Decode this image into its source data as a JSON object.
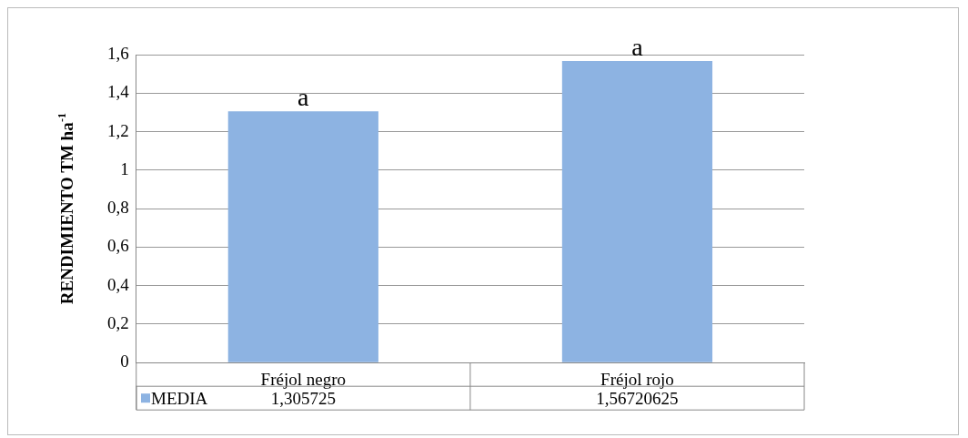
{
  "chart_data": {
    "type": "bar",
    "ylabel": "RENDIMIENTO TM ha$^{-1}$",
    "categories": [
      "Fréjol negro",
      "Fréjol rojo"
    ],
    "series": [
      {
        "name": "MEDIA",
        "color": "#8db3e2",
        "values": [
          1.305725,
          1.56720625
        ],
        "value_labels": [
          "1,305725",
          "1,56720625"
        ]
      }
    ],
    "ylim": [
      0,
      1.6
    ],
    "yticks": [
      {
        "value": 0,
        "label": "0"
      },
      {
        "value": 0.2,
        "label": "0,2"
      },
      {
        "value": 0.4,
        "label": "0,4"
      },
      {
        "value": 0.6,
        "label": "0,6"
      },
      {
        "value": 0.8,
        "label": "0,8"
      },
      {
        "value": 1,
        "label": "1"
      },
      {
        "value": 1.2,
        "label": "1,2"
      },
      {
        "value": 1.4,
        "label": "1,4"
      },
      {
        "value": 1.6,
        "label": "1,6"
      }
    ],
    "grid": "y",
    "legend": "bottom left",
    "annotations": [
      {
        "text": "a",
        "x": "Fréjol negro",
        "y": 1.305725
      },
      {
        "text": "a",
        "x": "Fréjol rojo",
        "y": 1.56720625
      }
    ]
  }
}
